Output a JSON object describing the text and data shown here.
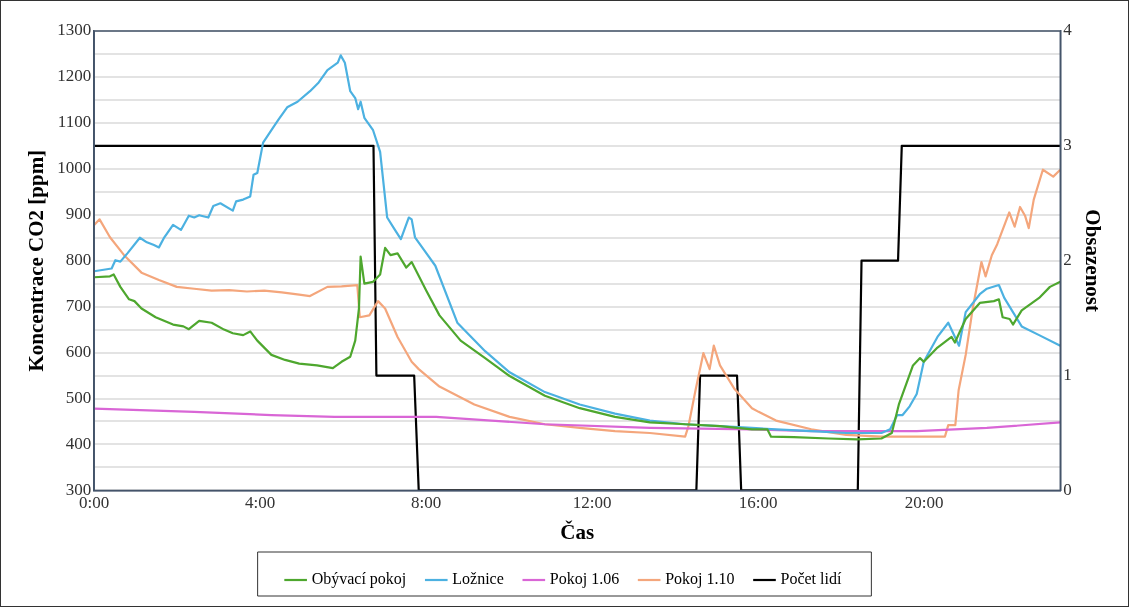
{
  "chart_data": {
    "type": "line",
    "xlabel": "Čas",
    "ylabel": "Koncentrace CO2 [ppm]",
    "y2label": "Obsazenost",
    "xlim": [
      0,
      23.28
    ],
    "xticks": [
      {
        "value": 0,
        "label": "0:00"
      },
      {
        "value": 4,
        "label": "4:00"
      },
      {
        "value": 8,
        "label": "8:00"
      },
      {
        "value": 12,
        "label": "12:00"
      },
      {
        "value": 16,
        "label": "16:00"
      },
      {
        "value": 20,
        "label": "20:00"
      }
    ],
    "ylim": [
      300,
      1300
    ],
    "yticks": [
      300,
      {
        "value": 350,
        "label": null
      },
      400,
      {
        "value": 450,
        "label": null
      },
      500,
      {
        "value": 550,
        "label": null
      },
      600,
      {
        "value": 650,
        "label": null
      },
      700,
      {
        "value": 750,
        "label": null
      },
      800,
      {
        "value": 850,
        "label": null
      },
      900,
      {
        "value": 950,
        "label": null
      },
      1000,
      {
        "value": 1050,
        "label": null
      },
      1100,
      {
        "value": 1150,
        "label": null
      },
      1200,
      {
        "value": 1250,
        "label": null
      },
      1300
    ],
    "y2lim": [
      0,
      4
    ],
    "y2ticks": [
      0,
      1,
      2,
      3,
      4
    ],
    "grid": "y",
    "legend": "bottom",
    "series": [
      {
        "name": "Obývací pokoj",
        "color": "#4ea72e",
        "x": [
          0,
          0.38,
          0.47,
          0.63,
          0.84,
          0.97,
          1.14,
          1.48,
          1.9,
          2.15,
          2.28,
          2.53,
          2.83,
          3.13,
          3.34,
          3.59,
          3.76,
          3.93,
          4.27,
          4.6,
          4.94,
          5.37,
          5.75,
          5.96,
          6.17,
          6.29,
          6.38,
          6.42,
          6.51,
          6.72,
          6.89,
          7.01,
          7.14,
          7.31,
          7.52,
          7.65,
          8.0,
          8.32,
          8.83,
          9.42,
          10.01,
          10.86,
          11.7,
          12.55,
          13.39,
          14.24,
          15.08,
          15.85,
          16.22,
          16.31,
          16.86,
          17.7,
          18.38,
          18.97,
          19.22,
          19.39,
          19.73,
          19.9,
          19.99,
          20.32,
          20.66,
          20.74,
          21.0,
          21.34,
          21.68,
          21.8,
          21.89,
          22.06,
          22.14,
          22.35,
          22.77,
          23.03,
          23.28
        ],
        "values": [
          764,
          766,
          770,
          743,
          716,
          712,
          696,
          677,
          661,
          657,
          651,
          669,
          665,
          650,
          642,
          638,
          646,
          626,
          595,
          584,
          576,
          572,
          566,
          580,
          591,
          626,
          696,
          809,
          750,
          754,
          770,
          828,
          812,
          816,
          785,
          797,
          735,
          681,
          626,
          588,
          549,
          506,
          479,
          460,
          448,
          444,
          440,
          433,
          433,
          417,
          416,
          413,
          411,
          413,
          425,
          487,
          572,
          588,
          580,
          611,
          634,
          622,
          673,
          708,
          712,
          716,
          677,
          673,
          661,
          692,
          719,
          743,
          754
        ]
      },
      {
        "name": "Ložnice",
        "color": "#4cb1e1",
        "x": [
          0,
          0.42,
          0.51,
          0.63,
          0.8,
          1.1,
          1.27,
          1.44,
          1.56,
          1.69,
          1.9,
          2.09,
          2.28,
          2.41,
          2.53,
          2.75,
          2.87,
          3.04,
          3.34,
          3.42,
          3.59,
          3.76,
          3.84,
          3.93,
          4.07,
          4.27,
          4.44,
          4.65,
          4.9,
          5.2,
          5.41,
          5.62,
          5.87,
          5.94,
          6.04,
          6.17,
          6.29,
          6.36,
          6.42,
          6.51,
          6.72,
          6.89,
          7.06,
          7.22,
          7.39,
          7.58,
          7.65,
          7.73,
          8.22,
          8.75,
          9.42,
          10.01,
          10.86,
          11.7,
          12.55,
          13.39,
          14.24,
          15.08,
          15.85,
          16.43,
          17.28,
          18.12,
          18.97,
          19.18,
          19.35,
          19.48,
          19.65,
          19.82,
          19.99,
          20.32,
          20.58,
          20.84,
          21.0,
          21.34,
          21.51,
          21.8,
          21.93,
          22.35,
          22.77,
          23.28
        ],
        "values": [
          777,
          783,
          801,
          798,
          816,
          850,
          840,
          834,
          829,
          851,
          878,
          867,
          898,
          894,
          899,
          894,
          919,
          925,
          909,
          929,
          933,
          940,
          987,
          991,
          1057,
          1084,
          1107,
          1134,
          1146,
          1169,
          1188,
          1215,
          1231,
          1247,
          1231,
          1169,
          1154,
          1130,
          1146,
          1111,
          1084,
          1037,
          894,
          871,
          847,
          894,
          890,
          851,
          789,
          665,
          603,
          557,
          514,
          487,
          467,
          452,
          444,
          440,
          436,
          433,
          429,
          425,
          425,
          433,
          464,
          464,
          483,
          510,
          580,
          634,
          665,
          615,
          688,
          727,
          739,
          747,
          719,
          657,
          638,
          615
        ]
      },
      {
        "name": "Pokoj 1.06",
        "color": "#d966d6",
        "x": [
          0,
          2.41,
          4.27,
          5.79,
          8.24,
          10.86,
          13.39,
          15.85,
          17.28,
          19.82,
          21.51,
          23.28
        ],
        "values": [
          478,
          471,
          464,
          460,
          460,
          444,
          436,
          433,
          429,
          429,
          436,
          448
        ]
      },
      {
        "name": "Pokoj 1.10",
        "color": "#f4a67c",
        "x": [
          0,
          0.13,
          0.38,
          0.72,
          1.14,
          1.56,
          1.99,
          2.41,
          2.83,
          3.25,
          3.68,
          4.1,
          4.52,
          4.94,
          5.2,
          5.62,
          5.96,
          6.34,
          6.4,
          6.63,
          6.84,
          7.01,
          7.31,
          7.65,
          7.82,
          8.32,
          9.16,
          10.01,
          10.86,
          11.7,
          12.55,
          13.39,
          14.24,
          14.32,
          14.49,
          14.68,
          14.83,
          14.93,
          15.08,
          15.42,
          15.85,
          16.01,
          16.43,
          17.28,
          18.12,
          18.97,
          19.82,
          20.5,
          20.58,
          20.75,
          20.83,
          21.0,
          21.17,
          21.38,
          21.48,
          21.63,
          21.76,
          22.05,
          22.18,
          22.31,
          22.43,
          22.52,
          22.64,
          22.86,
          23.11,
          23.28
        ],
        "values": [
          878,
          890,
          851,
          812,
          774,
          758,
          743,
          739,
          735,
          736,
          733,
          735,
          731,
          726,
          723,
          743,
          744,
          747,
          677,
          681,
          712,
          696,
          634,
          580,
          564,
          526,
          487,
          460,
          444,
          436,
          429,
          425,
          417,
          440,
          518,
          599,
          564,
          615,
          572,
          522,
          479,
          471,
          452,
          433,
          421,
          417,
          417,
          417,
          442,
          442,
          518,
          595,
          696,
          797,
          766,
          812,
          836,
          905,
          874,
          917,
          898,
          871,
          933,
          998,
          983,
          998
        ]
      },
      {
        "name": "Počet lidí",
        "color": "#000000",
        "axis": "y2",
        "x": [
          0,
          6.73,
          6.8,
          7.71,
          7.82,
          14.51,
          14.6,
          15.49,
          15.59,
          18.4,
          18.49,
          19.37,
          19.46,
          23.28
        ],
        "values": [
          3,
          3,
          1,
          1,
          0,
          0,
          1,
          1,
          0,
          0,
          2,
          2,
          3,
          3
        ]
      }
    ]
  }
}
